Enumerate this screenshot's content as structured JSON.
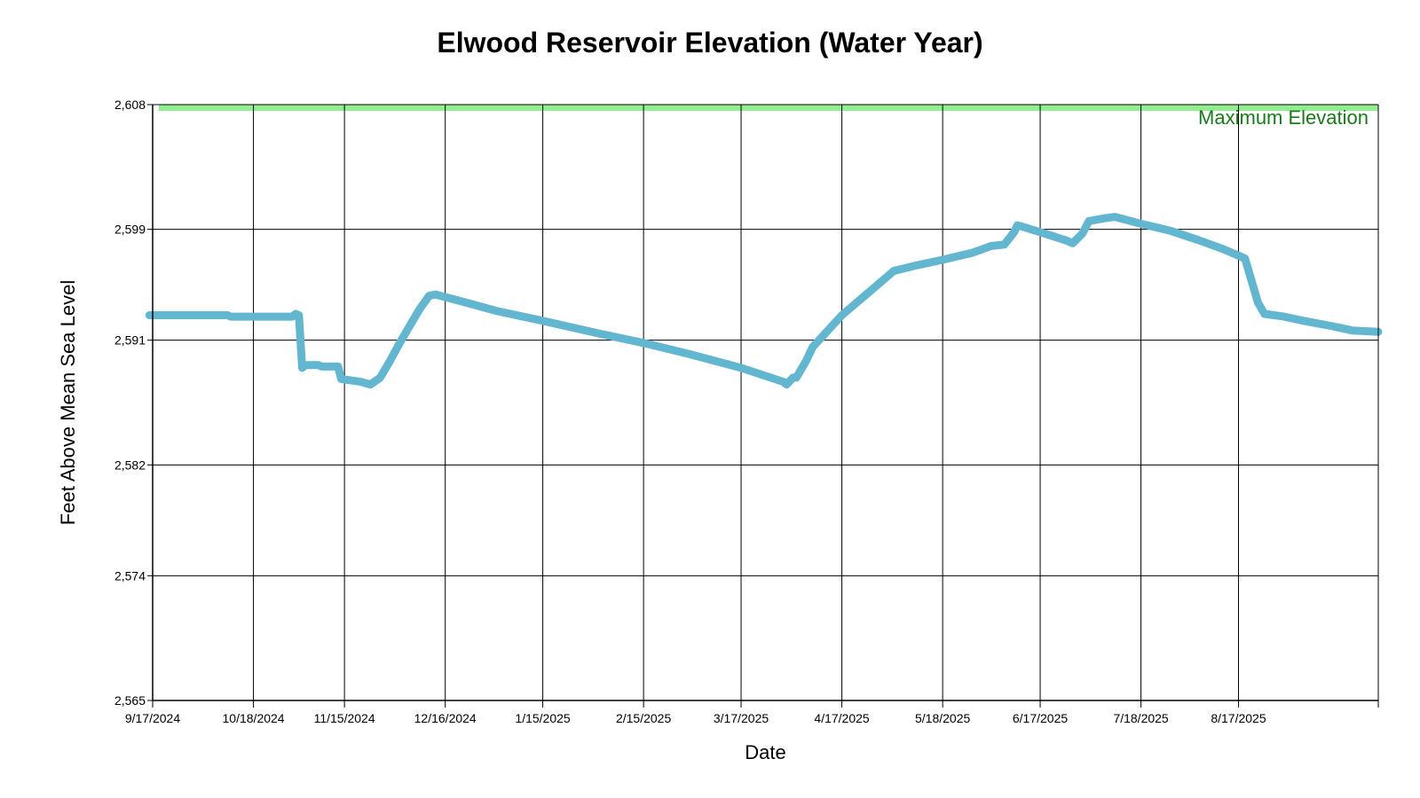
{
  "chart_data": {
    "type": "line",
    "title": "Elwood Reservoir Elevation (Water Year)",
    "xlabel": "Date",
    "ylabel": "Feet Above Mean Sea Level",
    "ylim": [
      2565,
      2610
    ],
    "y_ticks": [
      2565,
      2574,
      2582,
      2591,
      2599,
      2608
    ],
    "y_tick_labels": [
      "2,565",
      "2,574",
      "2,582",
      "2,591",
      "2,599",
      "2,608"
    ],
    "x_range": [
      "2024-09-17",
      "2025-09-29"
    ],
    "x_ticks": [
      "2024-09-17",
      "2024-10-18",
      "2024-11-15",
      "2024-12-16",
      "2025-01-15",
      "2025-02-15",
      "2025-03-17",
      "2025-04-17",
      "2025-05-18",
      "2025-06-17",
      "2025-07-18",
      "2025-08-17"
    ],
    "x_tick_labels": [
      "9/17/2024",
      "10/18/2024",
      "11/15/2024",
      "12/16/2024",
      "1/15/2025",
      "2/15/2025",
      "3/17/2025",
      "4/17/2025",
      "5/18/2025",
      "6/17/2025",
      "7/18/2025",
      "8/17/2025"
    ],
    "grid": true,
    "max_elevation": {
      "label": "Maximum Elevation",
      "value": 2608,
      "color": "#90ee90",
      "label_color": "#1a7a1a"
    },
    "series": [
      {
        "color": "#63b6cf",
        "points": [
          [
            "2024-09-16",
            2592.8
          ],
          [
            "2024-09-30",
            2592.8
          ],
          [
            "2024-10-10",
            2592.8
          ],
          [
            "2024-10-11",
            2592.7
          ],
          [
            "2024-10-20",
            2592.7
          ],
          [
            "2024-10-30",
            2592.7
          ],
          [
            "2024-10-31",
            2592.9
          ],
          [
            "2024-11-01",
            2592.8
          ],
          [
            "2024-11-02",
            2589.0
          ],
          [
            "2024-11-03",
            2589.2
          ],
          [
            "2024-11-07",
            2589.2
          ],
          [
            "2024-11-08",
            2589.1
          ],
          [
            "2024-11-13",
            2589.1
          ],
          [
            "2024-11-14",
            2588.2
          ],
          [
            "2024-11-20",
            2588.0
          ],
          [
            "2024-11-23",
            2587.8
          ],
          [
            "2024-11-26",
            2588.3
          ],
          [
            "2024-11-29",
            2589.5
          ],
          [
            "2024-12-02",
            2590.8
          ],
          [
            "2024-12-05",
            2592.0
          ],
          [
            "2024-12-08",
            2593.2
          ],
          [
            "2024-12-11",
            2594.2
          ],
          [
            "2024-12-13",
            2594.3
          ],
          [
            "2024-12-21",
            2593.8
          ],
          [
            "2025-01-01",
            2593.1
          ],
          [
            "2025-01-15",
            2592.4
          ],
          [
            "2025-02-01",
            2591.5
          ],
          [
            "2025-02-15",
            2590.8
          ],
          [
            "2025-03-01",
            2590.0
          ],
          [
            "2025-03-17",
            2589.0
          ],
          [
            "2025-03-30",
            2588.0
          ],
          [
            "2025-03-31",
            2587.8
          ],
          [
            "2025-04-02",
            2588.3
          ],
          [
            "2025-04-03",
            2588.3
          ],
          [
            "2025-04-06",
            2589.5
          ],
          [
            "2025-04-08",
            2590.5
          ],
          [
            "2025-04-17",
            2592.8
          ],
          [
            "2025-04-27",
            2594.8
          ],
          [
            "2025-05-03",
            2596.0
          ],
          [
            "2025-05-10",
            2596.4
          ],
          [
            "2025-05-18",
            2596.8
          ],
          [
            "2025-05-27",
            2597.3
          ],
          [
            "2025-06-02",
            2597.8
          ],
          [
            "2025-06-06",
            2597.9
          ],
          [
            "2025-06-09",
            2598.8
          ],
          [
            "2025-06-10",
            2599.3
          ],
          [
            "2025-06-17",
            2598.8
          ],
          [
            "2025-06-25",
            2598.2
          ],
          [
            "2025-06-27",
            2598.0
          ],
          [
            "2025-06-30",
            2598.7
          ],
          [
            "2025-07-02",
            2599.6
          ],
          [
            "2025-07-07",
            2599.8
          ],
          [
            "2025-07-10",
            2599.9
          ],
          [
            "2025-07-18",
            2599.4
          ],
          [
            "2025-07-27",
            2598.9
          ],
          [
            "2025-08-05",
            2598.2
          ],
          [
            "2025-08-12",
            2597.6
          ],
          [
            "2025-08-17",
            2597.1
          ],
          [
            "2025-08-19",
            2596.9
          ],
          [
            "2025-08-23",
            2593.7
          ],
          [
            "2025-08-25",
            2592.9
          ],
          [
            "2025-08-31",
            2592.7
          ],
          [
            "2025-09-06",
            2592.4
          ],
          [
            "2025-09-15",
            2592.0
          ],
          [
            "2025-09-21",
            2591.7
          ],
          [
            "2025-09-29",
            2591.6
          ]
        ]
      }
    ]
  }
}
